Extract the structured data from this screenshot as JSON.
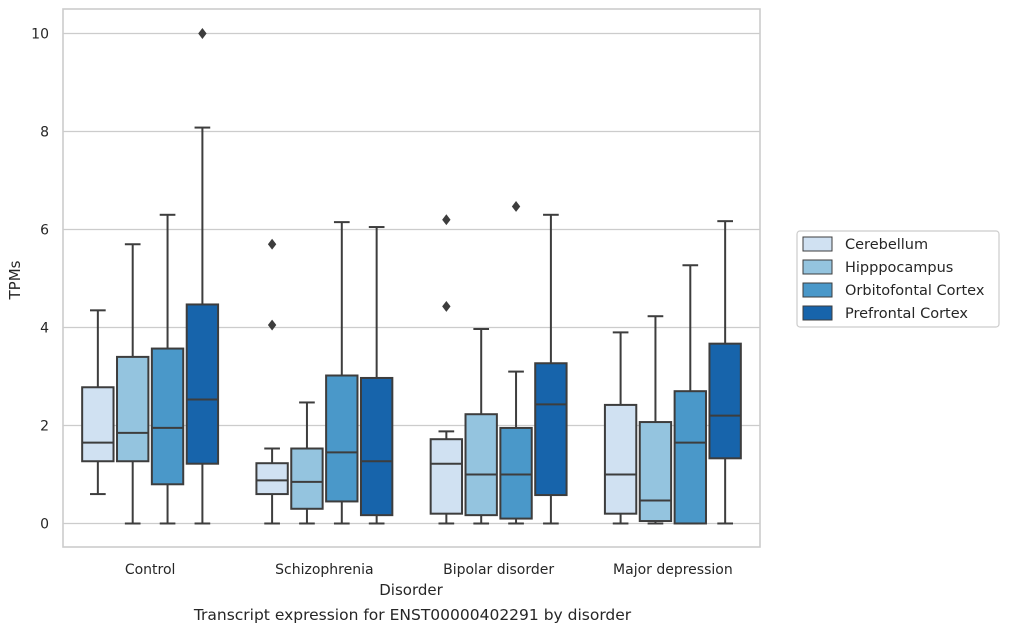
{
  "caption": "Transcript expression for ENST00000402291 by disorder",
  "chart_data": {
    "type": "box",
    "xlabel": "Disorder",
    "ylabel": "TPMs",
    "ylim": [
      -0.48,
      10.5
    ],
    "yticks": [
      0,
      2,
      4,
      6,
      8,
      10
    ],
    "grid": "horizontal",
    "legend_position": "right",
    "categories": [
      "Control",
      "Schizophrenia",
      "Bipolar disorder",
      "Major depression"
    ],
    "series": [
      {
        "name": "Cerebellum",
        "color": "#d0e1f2",
        "boxes": [
          {
            "whisker_low": 0.6,
            "q1": 1.27,
            "median": 1.65,
            "q3": 2.78,
            "whisker_high": 4.35,
            "outliers": []
          },
          {
            "whisker_low": 0.0,
            "q1": 0.6,
            "median": 0.88,
            "q3": 1.23,
            "whisker_high": 1.53,
            "outliers": [
              4.05,
              5.7
            ]
          },
          {
            "whisker_low": 0.0,
            "q1": 0.2,
            "median": 1.22,
            "q3": 1.72,
            "whisker_high": 1.88,
            "outliers": [
              4.43,
              6.2
            ]
          },
          {
            "whisker_low": 0.0,
            "q1": 0.2,
            "median": 1.0,
            "q3": 2.42,
            "whisker_high": 3.9,
            "outliers": []
          }
        ]
      },
      {
        "name": "Hipppocampus",
        "color": "#94c4df",
        "boxes": [
          {
            "whisker_low": 0.0,
            "q1": 1.27,
            "median": 1.85,
            "q3": 3.4,
            "whisker_high": 5.7,
            "outliers": []
          },
          {
            "whisker_low": 0.0,
            "q1": 0.3,
            "median": 0.85,
            "q3": 1.53,
            "whisker_high": 2.47,
            "outliers": []
          },
          {
            "whisker_low": 0.0,
            "q1": 0.17,
            "median": 1.0,
            "q3": 2.23,
            "whisker_high": 3.97,
            "outliers": []
          },
          {
            "whisker_low": 0.0,
            "q1": 0.05,
            "median": 0.47,
            "q3": 2.07,
            "whisker_high": 4.23,
            "outliers": []
          }
        ]
      },
      {
        "name": "Orbitofontal Cortex",
        "color": "#4a98c9",
        "boxes": [
          {
            "whisker_low": 0.0,
            "q1": 0.8,
            "median": 1.95,
            "q3": 3.57,
            "whisker_high": 6.3,
            "outliers": []
          },
          {
            "whisker_low": 0.0,
            "q1": 0.45,
            "median": 1.45,
            "q3": 3.02,
            "whisker_high": 6.15,
            "outliers": []
          },
          {
            "whisker_low": 0.0,
            "q1": 0.1,
            "median": 1.0,
            "q3": 1.95,
            "whisker_high": 3.1,
            "outliers": [
              6.47
            ]
          },
          {
            "whisker_low": 0.0,
            "q1": 0.0,
            "median": 1.65,
            "q3": 2.7,
            "whisker_high": 5.27,
            "outliers": []
          }
        ]
      },
      {
        "name": "Prefrontal Cortex",
        "color": "#1764ab",
        "boxes": [
          {
            "whisker_low": 0.0,
            "q1": 1.22,
            "median": 2.53,
            "q3": 4.47,
            "whisker_high": 8.08,
            "outliers": [
              10.0
            ]
          },
          {
            "whisker_low": 0.0,
            "q1": 0.17,
            "median": 1.27,
            "q3": 2.97,
            "whisker_high": 6.05,
            "outliers": []
          },
          {
            "whisker_low": 0.0,
            "q1": 0.58,
            "median": 2.43,
            "q3": 3.27,
            "whisker_high": 6.3,
            "outliers": []
          },
          {
            "whisker_low": 0.0,
            "q1": 1.33,
            "median": 2.2,
            "q3": 3.67,
            "whisker_high": 6.17,
            "outliers": []
          }
        ]
      }
    ]
  }
}
